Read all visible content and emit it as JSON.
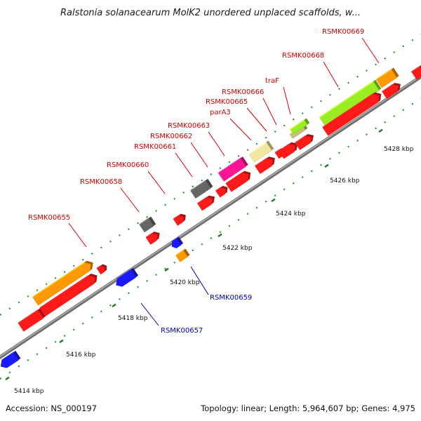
{
  "title": "Ralstonia solanacearum MolK2 unordered unplaced scaffolds, w...",
  "footer": {
    "accession": "Accession: NS_000197",
    "summary": "Topology: linear; Length: 5,964,607 bp; Genes: 4,975"
  },
  "ticks": [
    {
      "label": "5414 kbp"
    },
    {
      "label": "5416 kbp"
    },
    {
      "label": "5418 kbp"
    },
    {
      "label": "5420 kbp"
    },
    {
      "label": "5422 kbp"
    },
    {
      "label": "5424 kbp"
    },
    {
      "label": "5426 kbp"
    },
    {
      "label": "5428 kbp"
    }
  ],
  "labels_top": [
    {
      "text": "RSMK00655",
      "color": "#d40000"
    },
    {
      "text": "RSMK00658",
      "color": "#d40000"
    },
    {
      "text": "RSMK00660",
      "color": "#d40000"
    },
    {
      "text": "RSMK00661",
      "color": "#d40000"
    },
    {
      "text": "RSMK00662",
      "color": "#d40000"
    },
    {
      "text": "RSMK00663",
      "color": "#d40000"
    },
    {
      "text": "parA3",
      "color": "#d40000"
    },
    {
      "text": "RSMK00665",
      "color": "#d40000"
    },
    {
      "text": "RSMK00666",
      "color": "#d40000"
    },
    {
      "text": "traF",
      "color": "#d40000"
    },
    {
      "text": "RSMK00668",
      "color": "#d40000"
    },
    {
      "text": "RSMK00669",
      "color": "#d40000"
    }
  ],
  "labels_bottom": [
    {
      "text": "RSMK00657",
      "color": "#0000aa"
    },
    {
      "text": "RSMK00659",
      "color": "#0000aa"
    }
  ],
  "colors": {
    "red": "#ff1a1a",
    "orange": "#ff9900",
    "blue": "#1a1aff",
    "gray": "#666666",
    "magenta": "#ff1493",
    "lightyellow": "#f3e6a0",
    "lime": "#99ee22",
    "khaki": "#c8c080",
    "track": "#888888",
    "tick": "#228822"
  }
}
